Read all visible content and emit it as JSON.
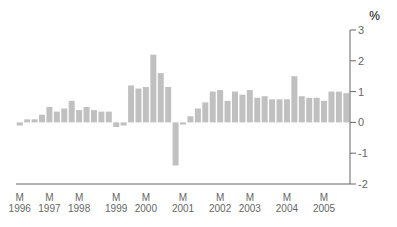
{
  "chart_data": {
    "type": "bar",
    "ylabel": "%",
    "categories": [
      "M\n1996",
      null,
      null,
      null,
      "M\n1997",
      null,
      null,
      null,
      "M\n1998",
      null,
      null,
      null,
      null,
      "M\n1999",
      null,
      null,
      null,
      "M\n2000",
      null,
      null,
      null,
      null,
      "M\n2001",
      null,
      null,
      null,
      null,
      "M\n2002",
      null,
      null,
      null,
      "M\n2003",
      null,
      null,
      null,
      null,
      "M\n2004",
      null,
      null,
      null,
      null,
      "M\n2005",
      null,
      null,
      null
    ],
    "values": [
      -0.1,
      0.1,
      0.1,
      0.25,
      0.5,
      0.35,
      0.45,
      0.7,
      0.4,
      0.5,
      0.4,
      0.35,
      0.35,
      -0.15,
      -0.1,
      1.2,
      1.1,
      1.15,
      2.2,
      1.6,
      1.15,
      -1.4,
      -0.07,
      0.2,
      0.45,
      0.65,
      1.0,
      1.05,
      0.7,
      1.0,
      0.9,
      1.05,
      0.8,
      0.85,
      0.75,
      0.75,
      0.75,
      1.5,
      0.85,
      0.8,
      0.8,
      0.7,
      1.0,
      1.0,
      0.95
    ],
    "color": "#c0c0c0",
    "ylim": [
      -2,
      3
    ],
    "yticks": [
      -2,
      -1,
      0,
      1,
      2,
      3
    ],
    "grid": false
  }
}
